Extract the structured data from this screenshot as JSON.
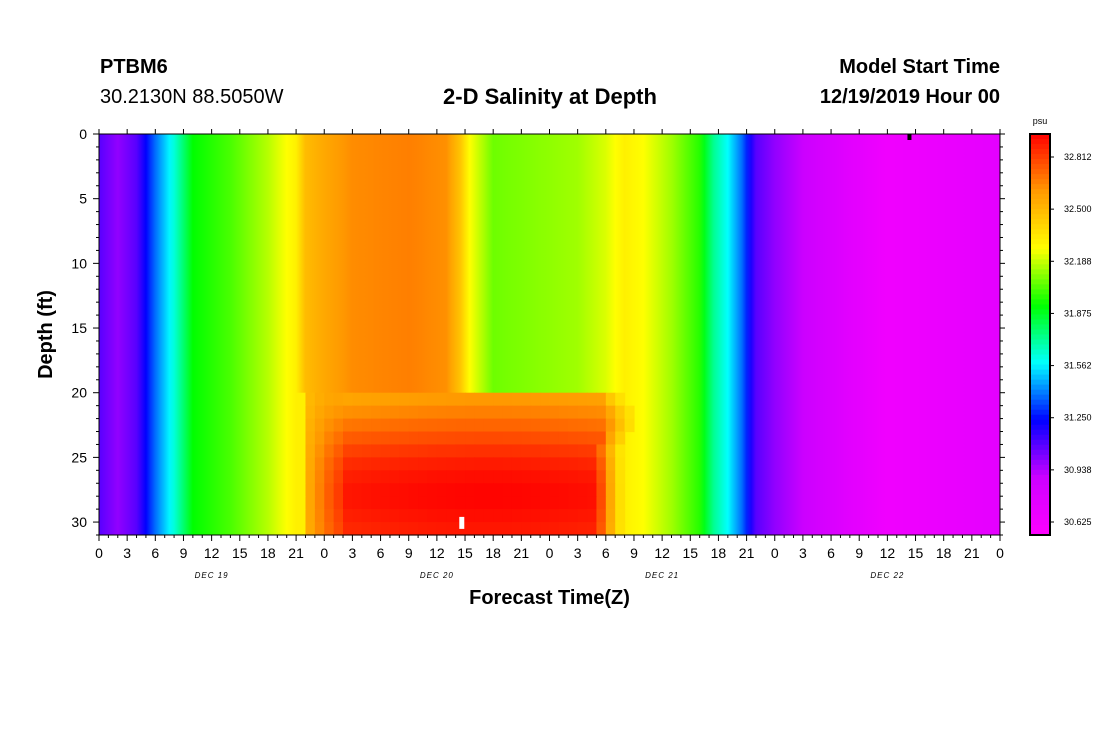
{
  "header": {
    "station_id": "PTBM6",
    "station_location": "30.2130N 88.5050W",
    "title": "2-D Salinity at Depth",
    "start_label": "Model Start Time",
    "start_value": "12/19/2019 Hour 00"
  },
  "chart_data": {
    "type": "heatmap",
    "title": "2-D Salinity at Depth",
    "xlabel": "Forecast Time(Z)",
    "ylabel": "Depth (ft)",
    "x_ticks": [
      "0",
      "3",
      "6",
      "9",
      "12",
      "15",
      "18",
      "21",
      "0",
      "3",
      "6",
      "9",
      "12",
      "15",
      "18",
      "21",
      "0",
      "3",
      "6",
      "9",
      "12",
      "15",
      "18",
      "21",
      "0",
      "3",
      "6",
      "9",
      "12",
      "15",
      "18",
      "21",
      "0"
    ],
    "x_range_hours": [
      0,
      96
    ],
    "day_labels": [
      "DEC 19",
      "DEC 20",
      "DEC 21",
      "DEC 22"
    ],
    "y_ticks": [
      "0",
      "5",
      "10",
      "15",
      "20",
      "25",
      "30"
    ],
    "ylim": [
      0,
      31
    ],
    "y_inverted": true,
    "colorbar": {
      "unit": "psu",
      "labels": [
        "32.812",
        "32.500",
        "32.188",
        "31.875",
        "31.562",
        "31.250",
        "30.938",
        "30.625"
      ],
      "range": [
        30.5,
        32.95
      ]
    },
    "surface_salinity_by_hour": [
      {
        "h": 0,
        "v": 31.05
      },
      {
        "h": 2,
        "v": 30.95
      },
      {
        "h": 4,
        "v": 31.05
      },
      {
        "h": 6,
        "v": 31.35
      },
      {
        "h": 8,
        "v": 31.6
      },
      {
        "h": 10,
        "v": 31.9
      },
      {
        "h": 14,
        "v": 32.0
      },
      {
        "h": 18,
        "v": 32.15
      },
      {
        "h": 21,
        "v": 32.3
      },
      {
        "h": 22,
        "v": 32.48
      },
      {
        "h": 24,
        "v": 32.55
      },
      {
        "h": 27,
        "v": 32.63
      },
      {
        "h": 33,
        "v": 32.66
      },
      {
        "h": 37,
        "v": 32.62
      },
      {
        "h": 38.5,
        "v": 32.45
      },
      {
        "h": 39.5,
        "v": 32.25
      },
      {
        "h": 42,
        "v": 32.05
      },
      {
        "h": 51,
        "v": 32.12
      },
      {
        "h": 54,
        "v": 32.2
      },
      {
        "h": 56,
        "v": 32.3
      },
      {
        "h": 58,
        "v": 32.25
      },
      {
        "h": 61,
        "v": 32.12
      },
      {
        "h": 64,
        "v": 31.95
      },
      {
        "h": 65.5,
        "v": 31.7
      },
      {
        "h": 67,
        "v": 31.55
      },
      {
        "h": 68.5,
        "v": 31.35
      },
      {
        "h": 70,
        "v": 31.05
      },
      {
        "h": 72,
        "v": 30.95
      },
      {
        "h": 76,
        "v": 30.82
      },
      {
        "h": 80,
        "v": 30.7
      },
      {
        "h": 84,
        "v": 30.6
      },
      {
        "h": 90,
        "v": 30.64
      },
      {
        "h": 96,
        "v": 30.68
      }
    ],
    "bottom_layer_salinity": [
      {
        "depth_ft": 21,
        "v": 32.56,
        "until_hour": 53
      },
      {
        "depth_ft": 22,
        "v": 32.62,
        "until_hour": 53.5
      },
      {
        "depth_ft": 23,
        "v": 32.68,
        "until_hour": 53.5
      },
      {
        "depth_ft": 24,
        "v": 32.74,
        "until_hour": 53
      },
      {
        "depth_ft": 25,
        "v": 32.8,
        "until_hour": 52.5
      },
      {
        "depth_ft": 26,
        "v": 32.85,
        "until_hour": 52.5
      },
      {
        "depth_ft": 27,
        "v": 32.88,
        "until_hour": 52.5
      },
      {
        "depth_ft": 28,
        "v": 32.9,
        "until_hour": 52.5
      },
      {
        "depth_ft": 29,
        "v": 32.9,
        "until_hour": 52.5
      },
      {
        "depth_ft": 30,
        "v": 32.88,
        "until_hour": 52.5
      },
      {
        "depth_ft": 31,
        "v": 32.86,
        "until_hour": 52.5
      }
    ],
    "grid": false
  },
  "colors": {
    "colormap": [
      "#ff00ff",
      "#cc00ff",
      "#0000ff",
      "#00ffff",
      "#00ff00",
      "#ffff00",
      "#ff9900",
      "#ff0000"
    ]
  }
}
